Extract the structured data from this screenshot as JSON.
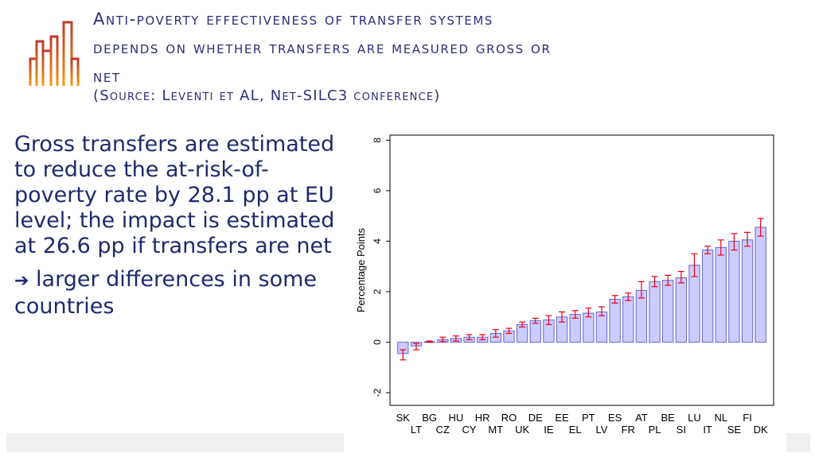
{
  "slide": {
    "title_lines": [
      "Anti-poverty effectiveness of transfer systems",
      "depends on whether transfers are measured gross or",
      "net"
    ],
    "source": "(Source:   Leventi et AL, Net-SILC3 conference)",
    "paragraph1": "Gross transfers are estimated to reduce the at-risk-of-poverty rate by 28.1 pp at EU level; the impact is estimated at 26.6 pp if transfers are net",
    "arrow_glyph": "➔",
    "paragraph2": "larger differences in some countries"
  },
  "colors": {
    "title": "#2e2e7a",
    "body": "#1f2a6b",
    "bar_fill": "#ccccff",
    "bar_stroke": "#6666cc",
    "error_bar": "#e8001a",
    "logo_gradient": [
      "#e85a1b",
      "#c0392b",
      "#f39c12"
    ]
  },
  "chart_data": {
    "type": "bar",
    "ylabel": "Percentage Points",
    "ylim": [
      -2.5,
      8.2
    ],
    "yticks": [
      -2,
      0,
      2,
      4,
      6,
      8
    ],
    "ytick_labels": [
      "-2",
      "0",
      "2",
      "4",
      "6",
      "8"
    ],
    "grid": false,
    "categories": [
      "SK",
      "LT",
      "BG",
      "CZ",
      "HU",
      "CY",
      "HR",
      "MT",
      "RO",
      "UK",
      "DE",
      "IE",
      "EE",
      "EL",
      "PT",
      "LV",
      "ES",
      "FR",
      "AT",
      "PL",
      "BE",
      "SI",
      "LU",
      "IT",
      "NL",
      "SE",
      "FI",
      "DK"
    ],
    "values": [
      -0.45,
      -0.15,
      0.02,
      0.1,
      0.15,
      0.2,
      0.2,
      0.35,
      0.45,
      0.7,
      0.85,
      0.88,
      1.0,
      1.1,
      1.15,
      1.2,
      1.7,
      1.8,
      2.05,
      2.4,
      2.45,
      2.55,
      3.05,
      3.65,
      3.75,
      4.0,
      4.05,
      4.55
    ],
    "ci_low": [
      -0.7,
      -0.3,
      0.0,
      0.02,
      0.05,
      0.1,
      0.1,
      0.2,
      0.35,
      0.6,
      0.75,
      0.7,
      0.8,
      0.95,
      1.0,
      1.05,
      1.55,
      1.65,
      1.75,
      2.2,
      2.25,
      2.35,
      2.6,
      3.5,
      3.45,
      3.65,
      3.8,
      4.2
    ],
    "ci_high": [
      -0.3,
      -0.05,
      0.05,
      0.2,
      0.25,
      0.3,
      0.3,
      0.5,
      0.55,
      0.8,
      0.95,
      1.05,
      1.2,
      1.25,
      1.35,
      1.4,
      1.85,
      1.95,
      2.4,
      2.6,
      2.65,
      2.8,
      3.5,
      3.8,
      4.05,
      4.3,
      4.35,
      4.9
    ],
    "label_rows": {
      "top": [
        "SK",
        "BG",
        "HU",
        "HR",
        "RO",
        "DE",
        "EE",
        "PT",
        "ES",
        "AT",
        "BE",
        "LU",
        "NL",
        "FI"
      ],
      "bottom": [
        "LT",
        "CZ",
        "CY",
        "MT",
        "UK",
        "IE",
        "EL",
        "LV",
        "FR",
        "PL",
        "SI",
        "IT",
        "SE",
        "DK"
      ]
    }
  }
}
